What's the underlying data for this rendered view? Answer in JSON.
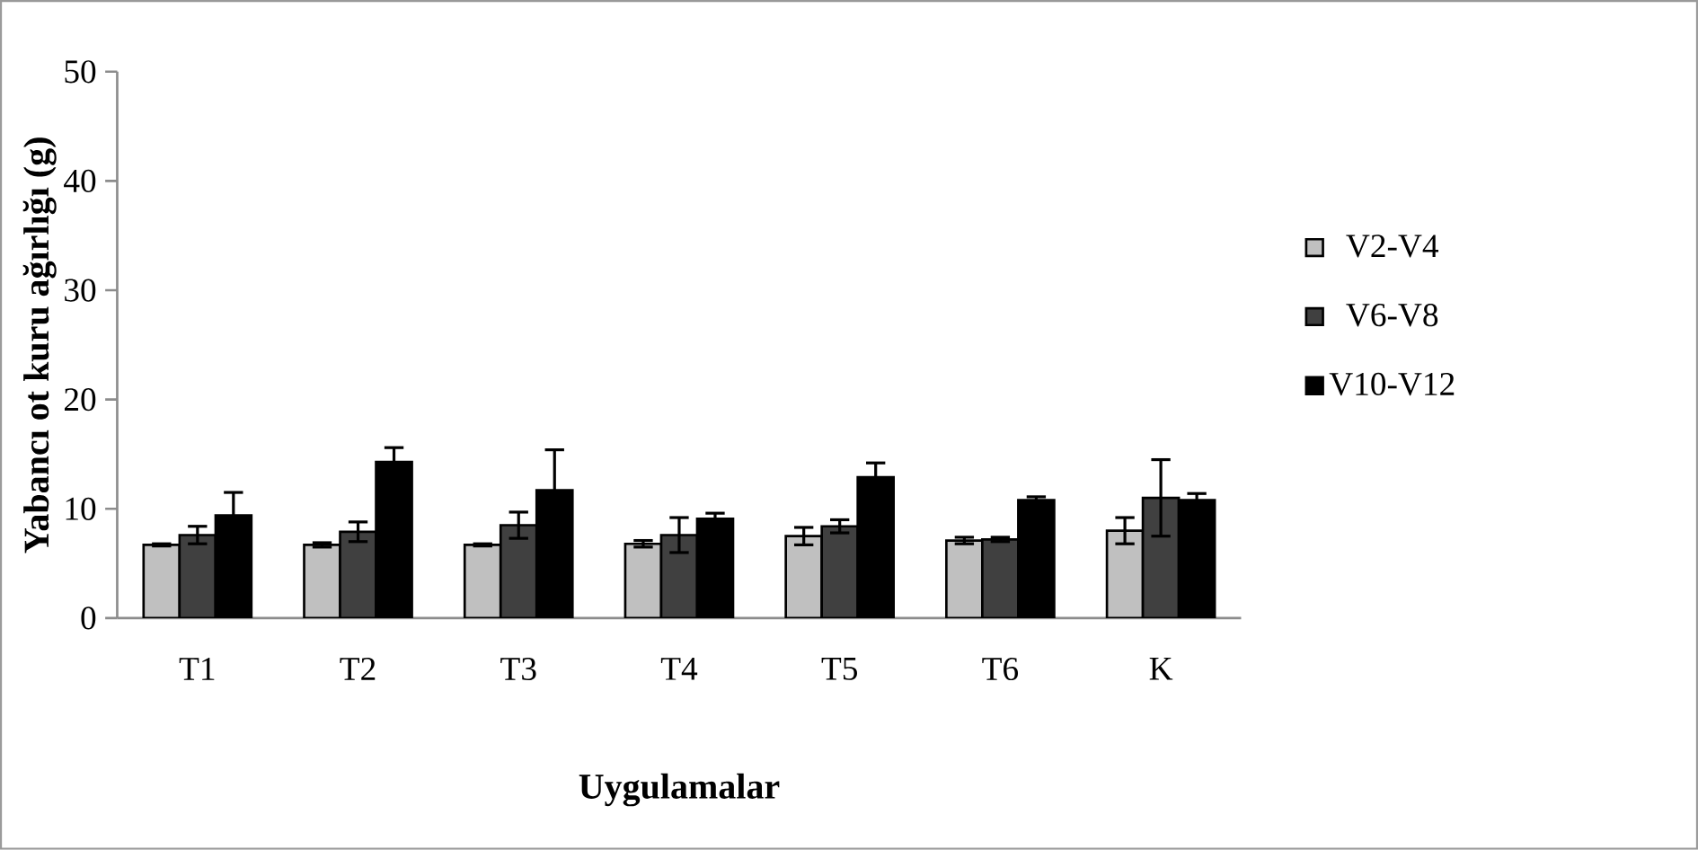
{
  "chart_data": {
    "type": "bar",
    "xlabel": "Uygulamalar",
    "ylabel": "Yabancı ot kuru ağırlığı (g)",
    "categories": [
      "T1",
      "T2",
      "T3",
      "T4",
      "T5",
      "T6",
      "K"
    ],
    "series": [
      {
        "name": "V2-V4",
        "color": "#c0c0c0",
        "values": [
          6.7,
          6.7,
          6.7,
          6.8,
          7.5,
          7.1,
          8.0
        ],
        "errors": [
          0.1,
          0.2,
          0.1,
          0.3,
          0.8,
          0.3,
          1.2
        ]
      },
      {
        "name": "V6-V8",
        "color": "#404040",
        "values": [
          7.6,
          7.9,
          8.5,
          7.6,
          8.4,
          7.2,
          11.0
        ],
        "errors": [
          0.8,
          0.9,
          1.2,
          1.6,
          0.6,
          0.2,
          3.5
        ]
      },
      {
        "name": "V10-V12",
        "color": "#000000",
        "values": [
          9.4,
          14.3,
          11.7,
          9.1,
          12.9,
          10.8,
          10.8
        ],
        "errors": [
          2.1,
          1.3,
          3.7,
          0.5,
          1.3,
          0.3,
          0.6
        ]
      }
    ],
    "ylim": [
      0,
      50
    ],
    "yticks": [
      0,
      10,
      20,
      30,
      40,
      50
    ],
    "grid": false,
    "legend": "right"
  }
}
